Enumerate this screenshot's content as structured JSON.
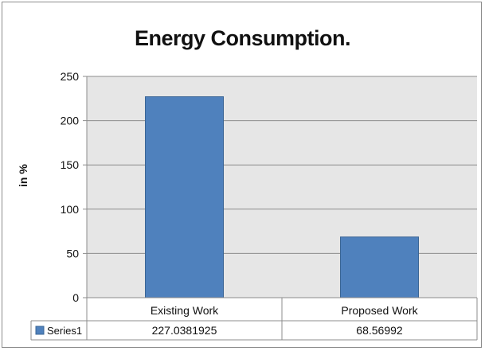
{
  "chart_data": {
    "type": "bar",
    "title": "Energy Consumption.",
    "xlabel": "",
    "ylabel": "in %",
    "categories": [
      "Existing Work",
      "Proposed Work"
    ],
    "series": [
      {
        "name": "Series1",
        "values": [
          227.0381925,
          68.56992
        ],
        "value_labels": [
          "227.0381925",
          "68.56992"
        ]
      }
    ],
    "ylim": [
      0,
      250
    ],
    "yticks": [
      0,
      50,
      100,
      150,
      200,
      250
    ],
    "grid": true,
    "legend": "data-table-bottom",
    "colors": {
      "bar": "#4f81bd",
      "bar_border": "#3a6595",
      "plot_background": "#e6e6e6",
      "gridline": "#8c8c8c"
    }
  }
}
